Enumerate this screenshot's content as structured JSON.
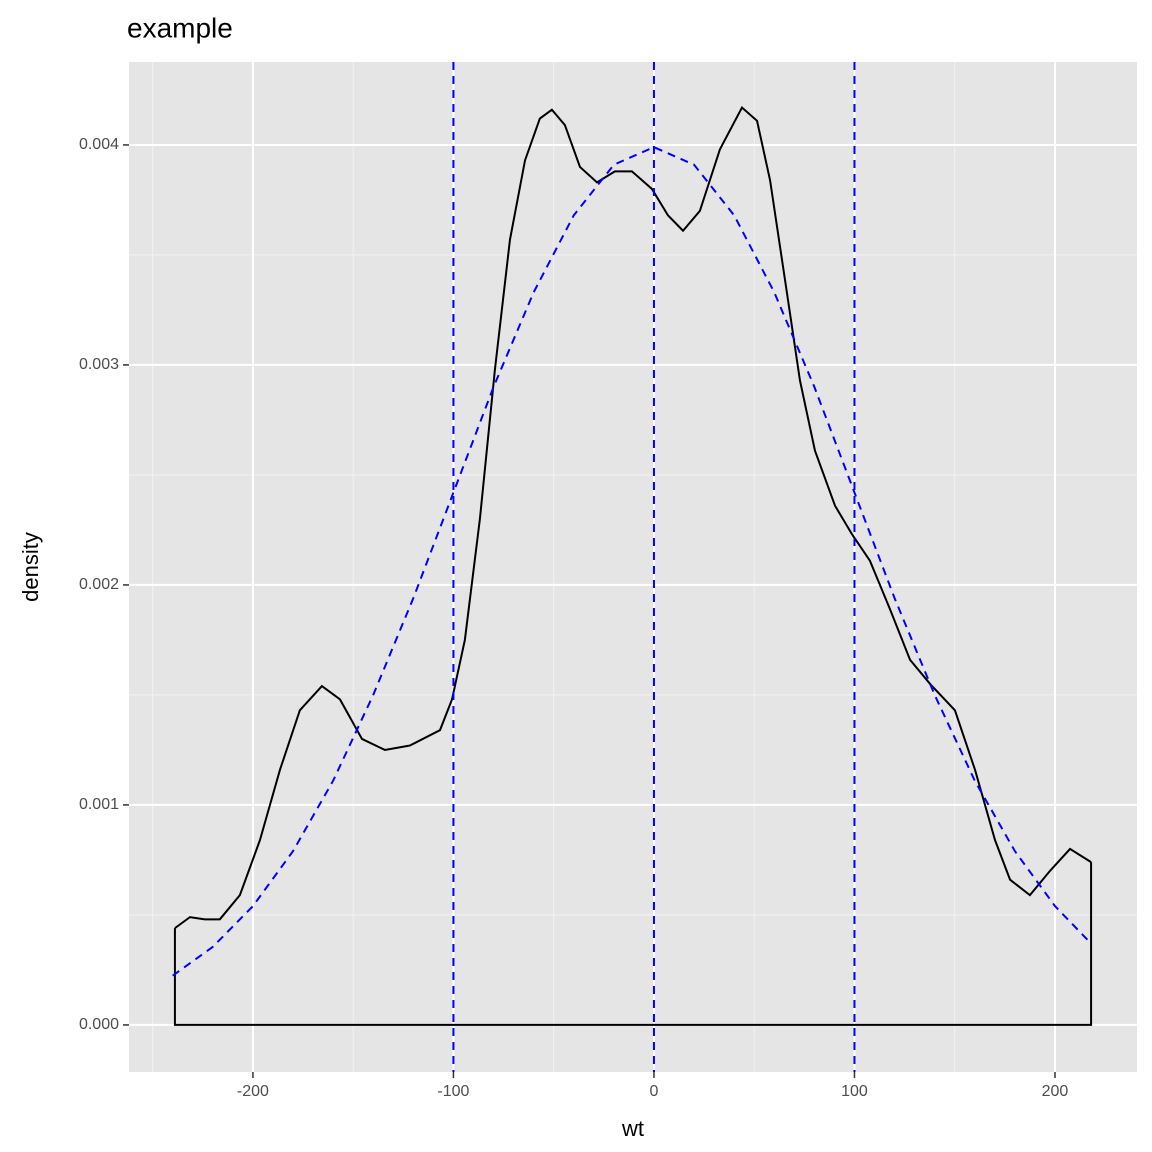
{
  "chart_data": {
    "type": "line",
    "title": "example",
    "x_label": "wt",
    "y_label": "density",
    "xlim": [
      -261.8,
      240.9
    ],
    "ylim": [
      -0.000214,
      0.004377
    ],
    "xticks": [
      -200,
      -100,
      0,
      100,
      200
    ],
    "yticks": [
      {
        "value": 0,
        "label": "0.000"
      },
      0.001,
      0.002,
      0.003,
      0.004
    ],
    "grid": true,
    "series": [
      {
        "color": "#000000",
        "linestyle": "solid",
        "filled_to_baseline": true,
        "x": [
          -238.9,
          -231.4,
          -224,
          -216.5,
          -206.5,
          -196.5,
          -186.5,
          -176.6,
          -165.6,
          -156.6,
          -145.6,
          -134.2,
          -121.7,
          -106.7,
          -100.7,
          -94.3,
          -86.8,
          -79.3,
          -71.8,
          -64.3,
          -56.9,
          -50.9,
          -44.4,
          -36.9,
          -28.4,
          -19.5,
          -11,
          -1,
          7,
          14.5,
          22.9,
          32.9,
          43.9,
          51.4,
          57.9,
          65.3,
          72.8,
          80.3,
          90.3,
          98.8,
          107.7,
          117.7,
          127.7,
          137.7,
          150.1,
          160.1,
          170.1,
          177.6,
          187.5,
          197.5,
          207.5,
          218
        ],
        "values": [
          0.00044,
          0.00049,
          0.00048,
          0.00048,
          0.00059,
          0.00084,
          0.00116,
          0.00143,
          0.00154,
          0.00148,
          0.0013,
          0.00125,
          0.00127,
          0.00134,
          0.00148,
          0.00175,
          0.0023,
          0.00298,
          0.00357,
          0.00393,
          0.00412,
          0.00416,
          0.00409,
          0.0039,
          0.00383,
          0.00388,
          0.00388,
          0.0038,
          0.00368,
          0.00361,
          0.0037,
          0.00398,
          0.00417,
          0.00411,
          0.00384,
          0.00339,
          0.00293,
          0.00261,
          0.00236,
          0.00223,
          0.00211,
          0.00189,
          0.00166,
          0.00155,
          0.00143,
          0.00116,
          0.00084,
          0.00066,
          0.00059,
          0.0007,
          0.0008,
          0.00074
        ]
      },
      {
        "color": "#0000ff",
        "linestyle": "dashed",
        "filled_to_baseline": false,
        "x": [
          -240,
          -220,
          -200,
          -180,
          -160,
          -140,
          -120,
          -100,
          -80,
          -60,
          -40,
          -20,
          0,
          20,
          40,
          60,
          80,
          100,
          120,
          140,
          160,
          180,
          200,
          218
        ],
        "values": [
          0.000224,
          0.000355,
          0.00054,
          0.00079,
          0.00111,
          0.0015,
          0.00194,
          0.00242,
          0.0029,
          0.00333,
          0.00368,
          0.00391,
          0.00399,
          0.00391,
          0.00368,
          0.00333,
          0.0029,
          0.00242,
          0.00194,
          0.0015,
          0.00111,
          0.00079,
          0.00054,
          0.00037
        ]
      }
    ],
    "vlines": {
      "color": "#0000ff",
      "linestyle": "dashed",
      "x": [
        -100,
        0,
        100
      ]
    }
  }
}
